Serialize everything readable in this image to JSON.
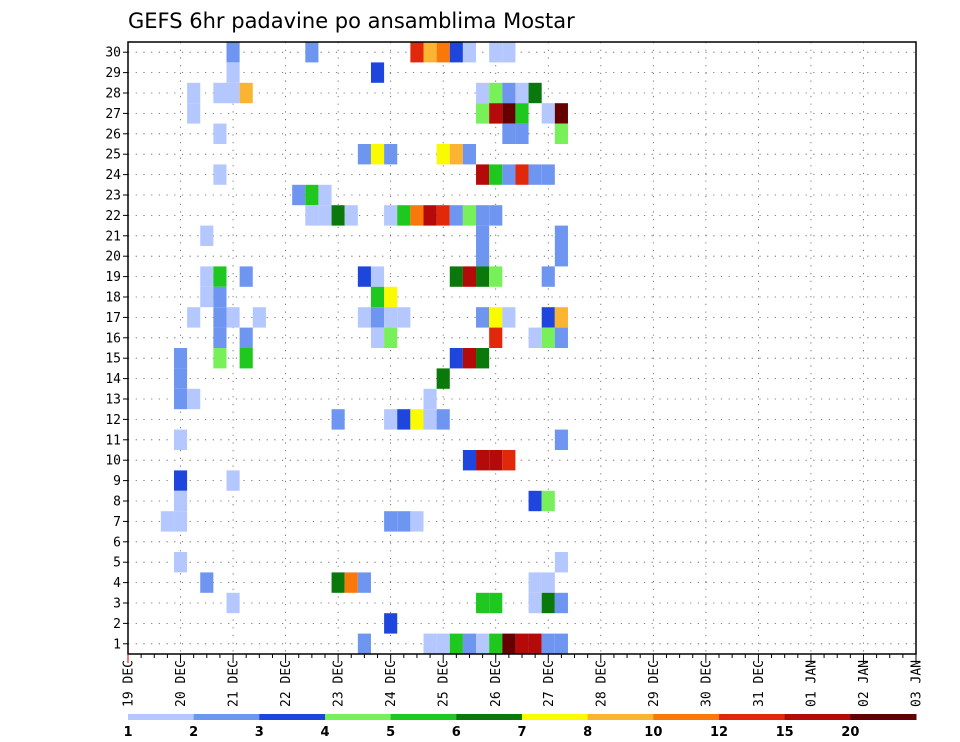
{
  "chart_data": {
    "type": "heatmap",
    "title": "GEFS 6hr padavine po ansamblima Mostar",
    "xlabel": "",
    "ylabel": "",
    "x_ticks": [
      "19 DEC",
      "20 DEC",
      "21 DEC",
      "22 DEC",
      "23 DEC",
      "24 DEC",
      "25 DEC",
      "26 DEC",
      "27 DEC",
      "28 DEC",
      "29 DEC",
      "30 DEC",
      "31 DEC",
      "01 JAN",
      "02 JAN",
      "03 JAN"
    ],
    "y_ticks": [
      1,
      2,
      3,
      4,
      5,
      6,
      7,
      8,
      9,
      10,
      11,
      12,
      13,
      14,
      15,
      16,
      17,
      18,
      19,
      20,
      21,
      22,
      23,
      24,
      25,
      26,
      27,
      28,
      29,
      30
    ],
    "x_unit": "6-hour steps from 19 DEC 00Z",
    "ylim": [
      1,
      30
    ],
    "grid": true,
    "legend": {
      "position": "bottom",
      "labels": [
        "1",
        "2",
        "3",
        "4",
        "5",
        "6",
        "7",
        "8",
        "10",
        "12",
        "15",
        "20"
      ],
      "colors": [
        "#b4c8ff",
        "#6e96f0",
        "#1e46dc",
        "#78f05a",
        "#1ec81e",
        "#0a780a",
        "#fafa00",
        "#fab432",
        "#fa780a",
        "#e1280a",
        "#b40a0a",
        "#640000"
      ]
    },
    "cells": [
      [
        30,
        8,
        2
      ],
      [
        30,
        14,
        2
      ],
      [
        30,
        22,
        10
      ],
      [
        30,
        23,
        8
      ],
      [
        30,
        24,
        9
      ],
      [
        30,
        25,
        3
      ],
      [
        30,
        26,
        1
      ],
      [
        30,
        28,
        1
      ],
      [
        30,
        29,
        1
      ],
      [
        29,
        8,
        1
      ],
      [
        29,
        19,
        3
      ],
      [
        28,
        5,
        1
      ],
      [
        28,
        7,
        1
      ],
      [
        28,
        8,
        1
      ],
      [
        28,
        9,
        8
      ],
      [
        28,
        27,
        1
      ],
      [
        28,
        28,
        4
      ],
      [
        28,
        29,
        2
      ],
      [
        28,
        30,
        1
      ],
      [
        28,
        31,
        6
      ],
      [
        27,
        5,
        1
      ],
      [
        27,
        27,
        4
      ],
      [
        27,
        28,
        11
      ],
      [
        27,
        29,
        12
      ],
      [
        27,
        30,
        5
      ],
      [
        27,
        32,
        1
      ],
      [
        27,
        33,
        12
      ],
      [
        26,
        7,
        1
      ],
      [
        26,
        29,
        2
      ],
      [
        26,
        30,
        2
      ],
      [
        26,
        33,
        4
      ],
      [
        25,
        18,
        2
      ],
      [
        25,
        19,
        7
      ],
      [
        25,
        20,
        2
      ],
      [
        25,
        24,
        7
      ],
      [
        25,
        25,
        8
      ],
      [
        25,
        26,
        2
      ],
      [
        24,
        7,
        1
      ],
      [
        24,
        27,
        11
      ],
      [
        24,
        28,
        5
      ],
      [
        24,
        29,
        2
      ],
      [
        24,
        30,
        10
      ],
      [
        24,
        31,
        2
      ],
      [
        24,
        32,
        2
      ],
      [
        23,
        13,
        2
      ],
      [
        23,
        14,
        5
      ],
      [
        23,
        15,
        1
      ],
      [
        22,
        14,
        1
      ],
      [
        22,
        15,
        1
      ],
      [
        22,
        16,
        6
      ],
      [
        22,
        17,
        1
      ],
      [
        22,
        20,
        1
      ],
      [
        22,
        21,
        5
      ],
      [
        22,
        22,
        9
      ],
      [
        22,
        23,
        11
      ],
      [
        22,
        24,
        10
      ],
      [
        22,
        25,
        2
      ],
      [
        22,
        26,
        4
      ],
      [
        22,
        27,
        2
      ],
      [
        22,
        28,
        2
      ],
      [
        21,
        6,
        1
      ],
      [
        21,
        27,
        2
      ],
      [
        21,
        33,
        2
      ],
      [
        20,
        27,
        2
      ],
      [
        20,
        33,
        2
      ],
      [
        19,
        6,
        1
      ],
      [
        19,
        7,
        5
      ],
      [
        19,
        9,
        2
      ],
      [
        19,
        18,
        3
      ],
      [
        19,
        19,
        1
      ],
      [
        19,
        25,
        6
      ],
      [
        19,
        26,
        11
      ],
      [
        19,
        27,
        6
      ],
      [
        19,
        28,
        4
      ],
      [
        19,
        32,
        2
      ],
      [
        18,
        6,
        1
      ],
      [
        18,
        7,
        2
      ],
      [
        18,
        19,
        5
      ],
      [
        18,
        20,
        7
      ],
      [
        17,
        5,
        1
      ],
      [
        17,
        7,
        2
      ],
      [
        17,
        8,
        1
      ],
      [
        17,
        10,
        1
      ],
      [
        17,
        18,
        1
      ],
      [
        17,
        19,
        2
      ],
      [
        17,
        20,
        1
      ],
      [
        17,
        21,
        1
      ],
      [
        17,
        27,
        2
      ],
      [
        17,
        28,
        7
      ],
      [
        17,
        29,
        1
      ],
      [
        17,
        32,
        3
      ],
      [
        17,
        33,
        8
      ],
      [
        16,
        7,
        2
      ],
      [
        16,
        9,
        2
      ],
      [
        16,
        19,
        1
      ],
      [
        16,
        20,
        4
      ],
      [
        16,
        28,
        10
      ],
      [
        16,
        31,
        1
      ],
      [
        16,
        32,
        4
      ],
      [
        16,
        33,
        2
      ],
      [
        15,
        4,
        2
      ],
      [
        15,
        7,
        4
      ],
      [
        15,
        9,
        5
      ],
      [
        15,
        25,
        3
      ],
      [
        15,
        26,
        11
      ],
      [
        15,
        27,
        6
      ],
      [
        14,
        4,
        2
      ],
      [
        14,
        24,
        6
      ],
      [
        13,
        4,
        2
      ],
      [
        13,
        5,
        1
      ],
      [
        13,
        23,
        1
      ],
      [
        12,
        16,
        2
      ],
      [
        12,
        20,
        1
      ],
      [
        12,
        21,
        3
      ],
      [
        12,
        22,
        7
      ],
      [
        12,
        23,
        1
      ],
      [
        12,
        24,
        2
      ],
      [
        11,
        4,
        1
      ],
      [
        11,
        33,
        2
      ],
      [
        10,
        26,
        3
      ],
      [
        10,
        27,
        11
      ],
      [
        10,
        28,
        11
      ],
      [
        10,
        29,
        10
      ],
      [
        9,
        4,
        3
      ],
      [
        9,
        8,
        1
      ],
      [
        8,
        4,
        1
      ],
      [
        8,
        31,
        3
      ],
      [
        8,
        32,
        4
      ],
      [
        7,
        3,
        1
      ],
      [
        7,
        4,
        1
      ],
      [
        7,
        20,
        2
      ],
      [
        7,
        21,
        2
      ],
      [
        7,
        22,
        1
      ],
      [
        5,
        4,
        1
      ],
      [
        5,
        33,
        1
      ],
      [
        4,
        6,
        2
      ],
      [
        4,
        16,
        6
      ],
      [
        4,
        17,
        9
      ],
      [
        4,
        18,
        2
      ],
      [
        4,
        31,
        1
      ],
      [
        4,
        32,
        1
      ],
      [
        3,
        8,
        1
      ],
      [
        3,
        27,
        5
      ],
      [
        3,
        28,
        5
      ],
      [
        3,
        31,
        1
      ],
      [
        3,
        32,
        6
      ],
      [
        3,
        33,
        2
      ],
      [
        2,
        20,
        3
      ],
      [
        1,
        18,
        2
      ],
      [
        1,
        23,
        1
      ],
      [
        1,
        24,
        1
      ],
      [
        1,
        25,
        5
      ],
      [
        1,
        26,
        2
      ],
      [
        1,
        27,
        1
      ],
      [
        1,
        28,
        5
      ],
      [
        1,
        29,
        12
      ],
      [
        1,
        30,
        11
      ],
      [
        1,
        31,
        11
      ],
      [
        1,
        32,
        2
      ],
      [
        1,
        33,
        2
      ]
    ]
  }
}
